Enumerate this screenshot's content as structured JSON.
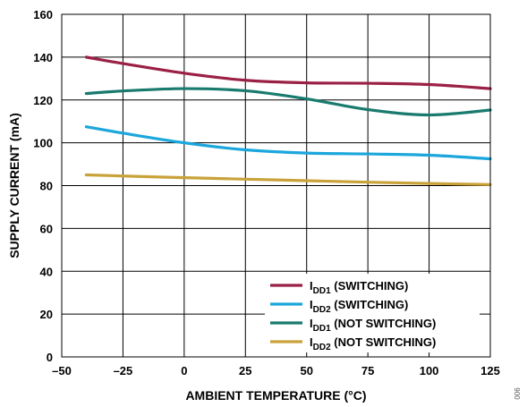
{
  "chart_data": {
    "type": "line",
    "xlabel": "AMBIENT TEMPERATURE (°C)",
    "ylabel": "SUPPLY CURRENT (mA)",
    "xlim": [
      -50,
      125
    ],
    "ylim": [
      0,
      160
    ],
    "x_ticks": [
      -50,
      -25,
      0,
      25,
      50,
      75,
      100,
      125
    ],
    "x_tick_labels": [
      "–50",
      "–25",
      "0",
      "25",
      "50",
      "75",
      "100",
      "125"
    ],
    "y_ticks": [
      0,
      20,
      40,
      60,
      80,
      100,
      120,
      140,
      160
    ],
    "y_tick_labels": [
      "0",
      "20",
      "40",
      "60",
      "80",
      "100",
      "120",
      "140",
      "160"
    ],
    "grid": true,
    "legend_position": "bottom-right",
    "series": [
      {
        "name": "IDD1 (SWITCHING)",
        "legend_main": "I",
        "legend_sub": "DD1",
        "legend_rest": " (SWITCHING)",
        "color": "#9b2046",
        "x": [
          -40,
          -25,
          0,
          25,
          50,
          75,
          100,
          125
        ],
        "y": [
          140,
          137,
          132.5,
          129.2,
          128,
          127.8,
          127.2,
          125.3
        ]
      },
      {
        "name": "IDD2 (SWITCHING)",
        "legend_main": "I",
        "legend_sub": "DD2",
        "legend_rest": " (SWITCHING)",
        "color": "#1ba6dc",
        "x": [
          -40,
          -25,
          0,
          25,
          50,
          75,
          100,
          125
        ],
        "y": [
          107.5,
          104.5,
          100,
          96.7,
          95.2,
          94.8,
          94.2,
          92.5
        ]
      },
      {
        "name": "IDD1 (NOT SWITCHING)",
        "legend_main": "I",
        "legend_sub": "DD1",
        "legend_rest": " (NOT SWITCHING)",
        "color": "#197a6e",
        "x": [
          -40,
          -25,
          0,
          25,
          50,
          75,
          100,
          125
        ],
        "y": [
          123,
          124.2,
          125.3,
          124.3,
          120.5,
          115.5,
          113,
          115.3
        ]
      },
      {
        "name": "IDD2 (NOT SWITCHING)",
        "legend_main": "I",
        "legend_sub": "DD2",
        "legend_rest": " (NOT SWITCHING)",
        "color": "#c9a23a",
        "x": [
          -40,
          -25,
          0,
          25,
          50,
          75,
          100,
          125
        ],
        "y": [
          85,
          84.5,
          83.7,
          83,
          82.3,
          81.6,
          81,
          80.5
        ]
      }
    ],
    "figure_id": "006"
  }
}
